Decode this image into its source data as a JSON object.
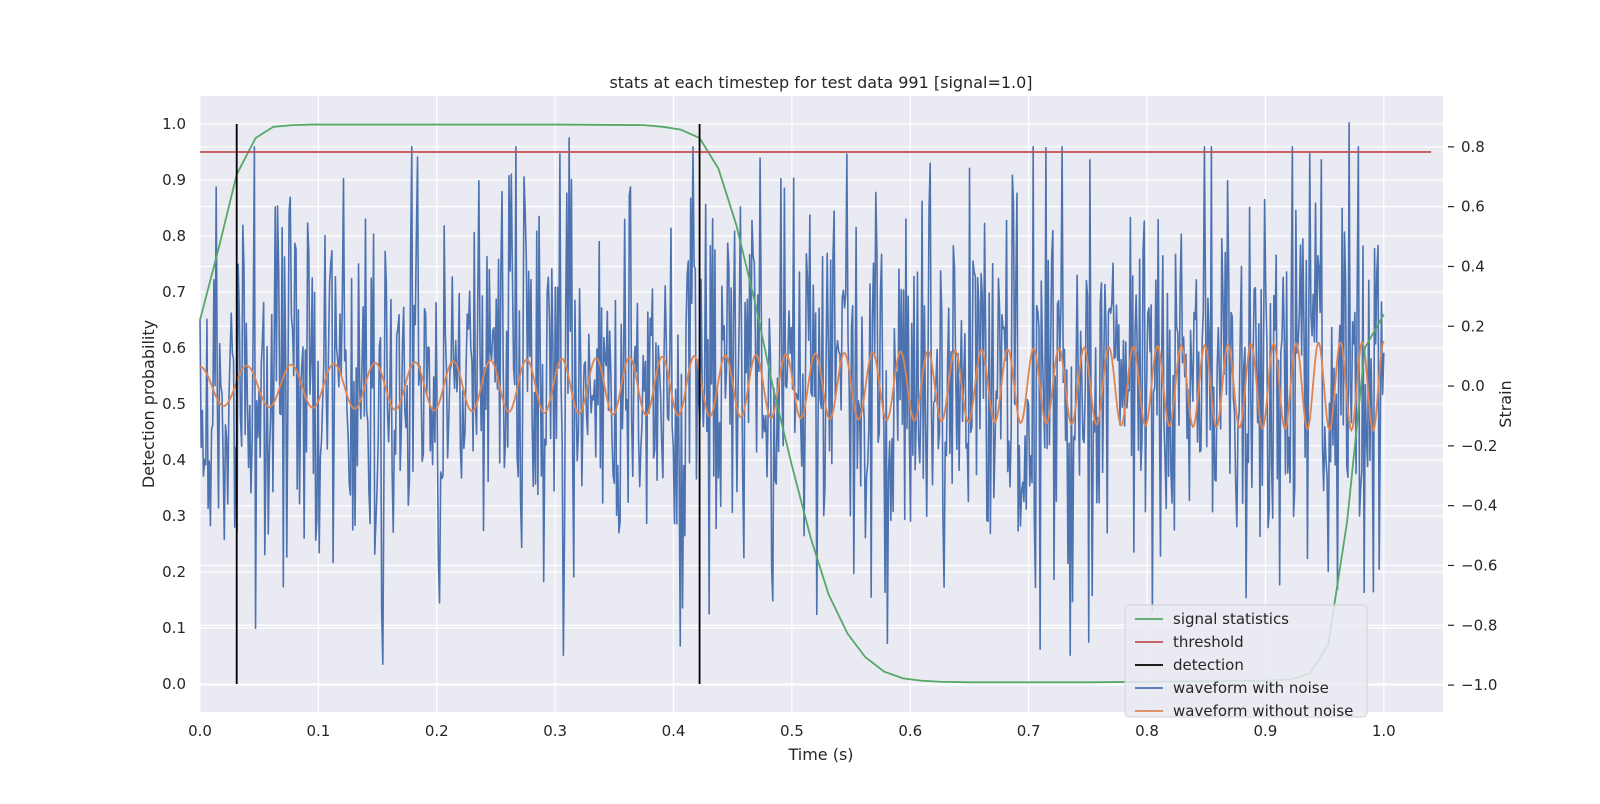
{
  "chart_data": {
    "type": "line",
    "title": "stats at each timestep for test data 991 [signal=1.0]",
    "xlabel": "Time (s)",
    "ylabel": "Detection probability",
    "y2label": "Strain",
    "xlim": [
      0.0,
      1.05
    ],
    "ylim": [
      -0.05,
      1.05
    ],
    "y2lim": [
      -1.09,
      0.97
    ],
    "xticks": [
      "0.0",
      "0.1",
      "0.2",
      "0.3",
      "0.4",
      "0.5",
      "0.6",
      "0.7",
      "0.8",
      "0.9",
      "1.0"
    ],
    "xtick_values": [
      0,
      0.1,
      0.2,
      0.3,
      0.4,
      0.5,
      0.6,
      0.7,
      0.8,
      0.9,
      1.0
    ],
    "yticks": [
      "0.0",
      "0.1",
      "0.2",
      "0.3",
      "0.4",
      "0.5",
      "0.6",
      "0.7",
      "0.8",
      "0.9",
      "1.0"
    ],
    "ytick_values": [
      0,
      0.1,
      0.2,
      0.3,
      0.4,
      0.5,
      0.6,
      0.7,
      0.8,
      0.9,
      1.0
    ],
    "y2ticks": [
      "−1.0",
      "−0.8",
      "−0.6",
      "−0.4",
      "−0.2",
      "0.0",
      "0.2",
      "0.4",
      "0.6",
      "0.8"
    ],
    "y2tick_values": [
      -1.0,
      -0.8,
      -0.6,
      -0.4,
      -0.2,
      0.0,
      0.2,
      0.4,
      0.6,
      0.8
    ],
    "grid": true,
    "legend_position": "lower-right",
    "series": [
      {
        "name": "signal statistics",
        "color": "#55a868",
        "axis": "left",
        "x": [
          0.0,
          0.016,
          0.031,
          0.047,
          0.062,
          0.078,
          0.094,
          0.125,
          0.2,
          0.3,
          0.375,
          0.391,
          0.406,
          0.422,
          0.438,
          0.453,
          0.469,
          0.484,
          0.5,
          0.516,
          0.531,
          0.547,
          0.562,
          0.578,
          0.594,
          0.609,
          0.625,
          0.65,
          0.7,
          0.75,
          0.8,
          0.85,
          0.9,
          0.922,
          0.938,
          0.953,
          0.969,
          0.984,
          1.0
        ],
        "y": [
          0.65,
          0.78,
          0.91,
          0.975,
          0.995,
          0.998,
          0.999,
          0.999,
          0.999,
          0.999,
          0.998,
          0.995,
          0.99,
          0.975,
          0.92,
          0.82,
          0.68,
          0.53,
          0.39,
          0.26,
          0.16,
          0.09,
          0.048,
          0.022,
          0.01,
          0.006,
          0.004,
          0.003,
          0.003,
          0.003,
          0.004,
          0.005,
          0.006,
          0.008,
          0.02,
          0.07,
          0.29,
          0.6,
          0.66
        ]
      },
      {
        "name": "threshold",
        "color": "#c44e52",
        "axis": "left",
        "x": [
          0.0,
          1.04
        ],
        "y": [
          0.95,
          0.95
        ]
      },
      {
        "name": "detection",
        "color": "#000000",
        "axis": "left",
        "vlines": [
          0.031,
          0.422
        ],
        "ymin": 0.0,
        "ymax": 1.0
      },
      {
        "name": "waveform with noise",
        "color": "#4c72b0",
        "axis": "right",
        "x_range": [
          0.0,
          1.0
        ],
        "points": 1024,
        "approx_std": 0.32,
        "extremes": [
          {
            "x": 0.154,
            "y": -0.93
          },
          {
            "x": 0.312,
            "y": 0.83
          },
          {
            "x": 0.581,
            "y": -0.86
          },
          {
            "x": 0.71,
            "y": -0.88
          },
          {
            "x": 0.971,
            "y": 0.88
          }
        ]
      },
      {
        "name": "waveform without noise",
        "color": "#dd8452",
        "axis": "right",
        "x_range": [
          0.0,
          1.0
        ],
        "amplitude_start": 0.065,
        "amplitude_end": 0.15,
        "approx_cycles": 40
      }
    ],
    "legend": [
      {
        "label": "signal statistics",
        "color": "#55a868"
      },
      {
        "label": "threshold",
        "color": "#c44e52"
      },
      {
        "label": "detection",
        "color": "#000000"
      },
      {
        "label": "waveform with noise",
        "color": "#4c72b0"
      },
      {
        "label": "waveform without noise",
        "color": "#dd8452"
      }
    ]
  }
}
